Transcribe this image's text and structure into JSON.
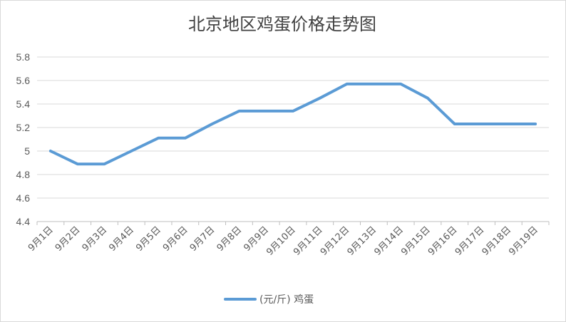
{
  "chart_data": {
    "type": "line",
    "title": "北京地区鸡蛋价格走势图",
    "categories": [
      "9月1日",
      "9月2日",
      "9月3日",
      "9月4日",
      "9月5日",
      "9月6日",
      "9月7日",
      "9月8日",
      "9月9日",
      "9月10日",
      "9月11日",
      "9月12日",
      "9月13日",
      "9月14日",
      "9月15日",
      "9月16日",
      "9月17日",
      "9月18日",
      "9月19日"
    ],
    "series": [
      {
        "name": "(元/斤) 鸡蛋",
        "color": "#5b9bd5",
        "values": [
          5.0,
          4.89,
          4.89,
          5.0,
          5.11,
          5.11,
          5.23,
          5.34,
          5.34,
          5.34,
          5.45,
          5.57,
          5.57,
          5.57,
          5.45,
          5.23,
          5.23,
          5.23,
          5.23
        ]
      }
    ],
    "ylim": [
      4.4,
      5.8
    ],
    "yticks": [
      "4.4",
      "4.6",
      "4.8",
      "5",
      "5.2",
      "5.4",
      "5.6",
      "5.8"
    ],
    "grid": true,
    "legend": "bottom"
  }
}
